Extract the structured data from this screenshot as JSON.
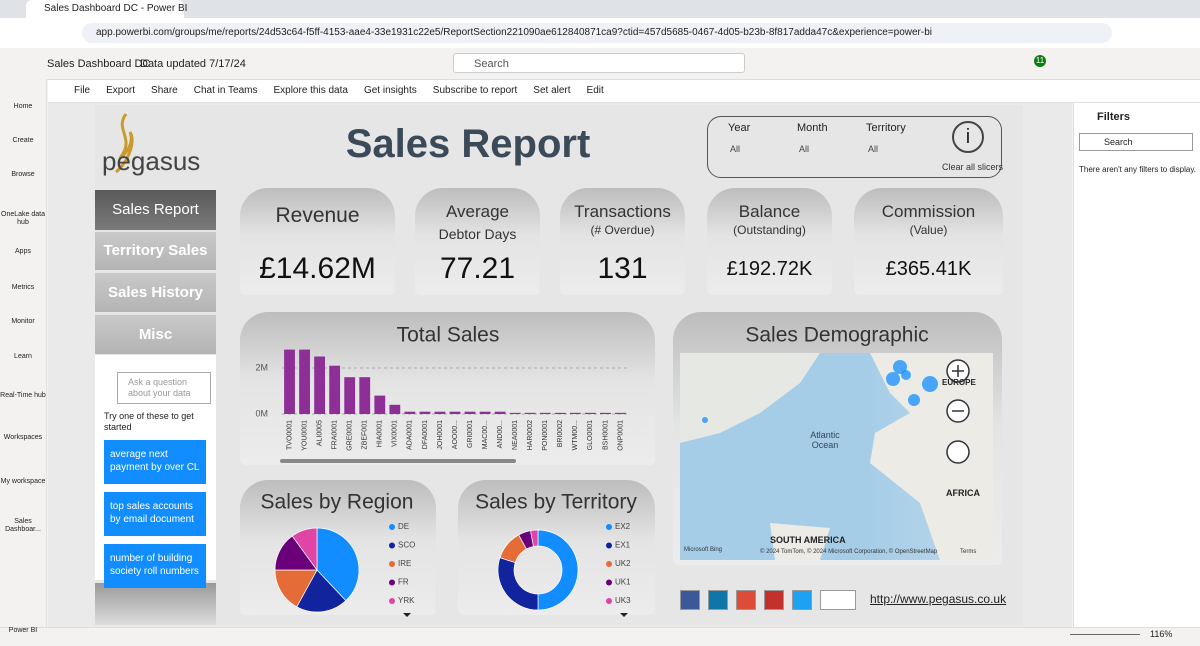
{
  "browser": {
    "tab_title": "Sales Dashboard DC - Power BI",
    "url": "app.powerbi.com/groups/me/reports/24d53c64-f5ff-4153-aae4-33e1931c22e5/ReportSection221090ae612840871ca9?ctid=457d5685-0467-4d05-b23b-8f817adda47c&experience=power-bi"
  },
  "header": {
    "app_name": "Sales Dashboard DC",
    "data_updated": "Data updated 7/17/24",
    "search": "Search",
    "notifications": "11"
  },
  "nav": [
    "Home",
    "Create",
    "Browse",
    "OneLake data hub",
    "Apps",
    "Metrics",
    "Monitor",
    "Learn",
    "Real-Time hub",
    "Workspaces",
    "My workspace",
    "Sales Dashboar...",
    "Power BI"
  ],
  "toolbar": [
    "File",
    "Export",
    "Share",
    "Chat in Teams",
    "Explore this data",
    "Get insights",
    "Subscribe to report",
    "Set alert",
    "Edit"
  ],
  "filters": {
    "title": "Filters",
    "search": "Search",
    "empty": "There aren't any filters to display."
  },
  "report": {
    "logo": "pegasus",
    "title": "Sales Report",
    "slicers": [
      {
        "label": "Year",
        "value": "All"
      },
      {
        "label": "Month",
        "value": "All"
      },
      {
        "label": "Territory",
        "value": "All"
      }
    ],
    "clear": "Clear all slicers",
    "menu": [
      "Sales Report",
      "Territory Sales",
      "Sales History",
      "Misc"
    ],
    "qa": {
      "placeholder": "Ask a question about your data",
      "prompt": "Try one of these to get started",
      "suggestions": [
        "average next payment by over CL",
        "top sales accounts by email document",
        "number of building society roll numbers"
      ]
    },
    "kpis": [
      {
        "title": "Revenue",
        "value": "£14.62M"
      },
      {
        "title": "Average",
        "subtitle": "Debtor Days",
        "value": "77.21"
      },
      {
        "title": "Transactions",
        "subtitle": "(# Overdue)",
        "value": "131"
      },
      {
        "title": "Balance",
        "subtitle": "(Outstanding)",
        "value": "£192.72K"
      },
      {
        "title": "Commission",
        "subtitle": "(Value)",
        "value": "£365.41K"
      }
    ],
    "map": {
      "title": "Sales Demographic",
      "labels": [
        "Atlantic Ocean",
        "EUROPE",
        "AFRICA",
        "SOUTH AMERICA"
      ],
      "attribution": "© 2024 TomTom, © 2024 Microsoft Corporation, © OpenStreetMap",
      "terms": "Terms",
      "provider": "Microsoft Bing"
    },
    "website": "http://www.pegasus.co.uk",
    "zoom": "116%"
  },
  "chart_data": [
    {
      "type": "bar",
      "title": "Total Sales",
      "color": "#8e2f97",
      "categories": [
        "TVO0001",
        "YOU0001",
        "ALI0005",
        "FRA0001",
        "GRE0001",
        "ZBEF001",
        "HIA0001",
        "VIX0001",
        "ADA0001",
        "DFA0001",
        "JOH0001",
        "AOO00...",
        "GRI0001",
        "MAC00...",
        "AND00...",
        "NEA0001",
        "HAR0002",
        "PON0001",
        "BRI0002",
        "WTM00...",
        "GLO0001",
        "BSH0001",
        "ONP0001"
      ],
      "values": [
        2800000,
        2800000,
        2500000,
        2100000,
        1600000,
        1600000,
        800000,
        400000,
        100000,
        100000,
        100000,
        100000,
        100000,
        100000,
        100000,
        50000,
        50000,
        50000,
        50000,
        50000,
        50000,
        50000,
        50000
      ],
      "ylim": [
        0,
        3000000
      ],
      "yticks": [
        {
          "value": 0,
          "label": "0M"
        },
        {
          "value": 2000000,
          "label": "2M"
        }
      ],
      "grid": true
    },
    {
      "type": "pie",
      "title": "Sales by Region",
      "categories": [
        "DE",
        "SCO",
        "IRE",
        "FR",
        "YRK"
      ],
      "values": [
        38,
        20,
        17,
        15,
        10
      ],
      "colors": [
        "#118dff",
        "#12239e",
        "#e66c37",
        "#6b007b",
        "#e044a7"
      ]
    },
    {
      "type": "donut",
      "title": "Sales by Territory",
      "categories": [
        "EX2",
        "EX1",
        "UK2",
        "UK1",
        "UK3"
      ],
      "values": [
        50,
        30,
        12,
        5,
        3
      ],
      "colors": [
        "#118dff",
        "#12239e",
        "#e66c37",
        "#6b007b",
        "#e044a7"
      ]
    }
  ]
}
